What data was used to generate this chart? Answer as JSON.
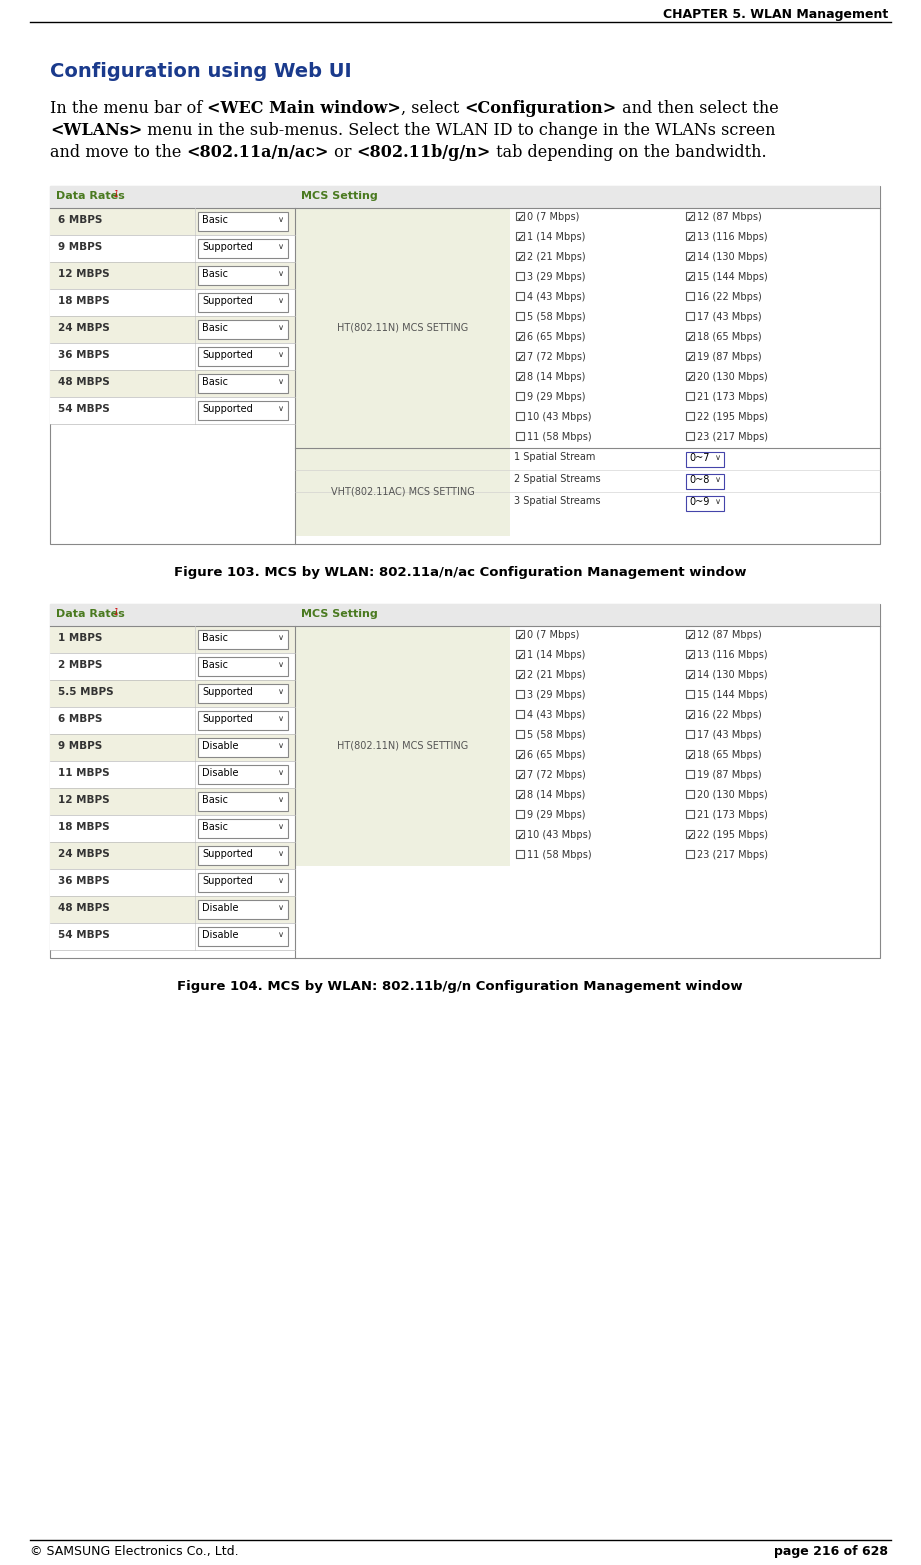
{
  "header_text": "CHAPTER 5. WLAN Management",
  "footer_left": "© SAMSUNG Electronics Co., Ltd.",
  "footer_right": "page 216 of 628",
  "section_title": "Configuration using Web UI",
  "figure1_caption": "Figure 103. MCS by WLAN: 802.11a/n/ac Configuration Management window",
  "figure2_caption": "Figure 104. MCS by WLAN: 802.11b/g/n Configuration Management window",
  "table1": {
    "data_rates_label": "Data Rates",
    "mcs_setting_label": "MCS Setting",
    "ht_label": "HT(802.11N) MCS SETTING",
    "vht_label": "VHT(802.11AC) MCS SETTING",
    "rows": [
      {
        "rate": "6 MBPS",
        "setting": "Basic"
      },
      {
        "rate": "9 MBPS",
        "setting": "Supported"
      },
      {
        "rate": "12 MBPS",
        "setting": "Basic"
      },
      {
        "rate": "18 MBPS",
        "setting": "Supported"
      },
      {
        "rate": "24 MBPS",
        "setting": "Basic"
      },
      {
        "rate": "36 MBPS",
        "setting": "Supported"
      },
      {
        "rate": "48 MBPS",
        "setting": "Basic"
      },
      {
        "rate": "54 MBPS",
        "setting": "Supported"
      }
    ],
    "mcs_left": [
      {
        "checked": true,
        "label": "0 (7 Mbps)"
      },
      {
        "checked": true,
        "label": "1 (14 Mbps)"
      },
      {
        "checked": true,
        "label": "2 (21 Mbps)"
      },
      {
        "checked": false,
        "label": "3 (29 Mbps)"
      },
      {
        "checked": false,
        "label": "4 (43 Mbps)"
      },
      {
        "checked": false,
        "label": "5 (58 Mbps)"
      },
      {
        "checked": true,
        "label": "6 (65 Mbps)"
      },
      {
        "checked": true,
        "label": "7 (72 Mbps)"
      },
      {
        "checked": true,
        "label": "8 (14 Mbps)"
      },
      {
        "checked": false,
        "label": "9 (29 Mbps)"
      },
      {
        "checked": false,
        "label": "10 (43 Mbps)"
      },
      {
        "checked": false,
        "label": "11 (58 Mbps)"
      }
    ],
    "mcs_right": [
      {
        "checked": true,
        "label": "12 (87 Mbps)"
      },
      {
        "checked": true,
        "label": "13 (116 Mbps)"
      },
      {
        "checked": true,
        "label": "14 (130 Mbps)"
      },
      {
        "checked": true,
        "label": "15 (144 Mbps)"
      },
      {
        "checked": false,
        "label": "16 (22 Mbps)"
      },
      {
        "checked": false,
        "label": "17 (43 Mbps)"
      },
      {
        "checked": true,
        "label": "18 (65 Mbps)"
      },
      {
        "checked": true,
        "label": "19 (87 Mbps)"
      },
      {
        "checked": true,
        "label": "20 (130 Mbps)"
      },
      {
        "checked": false,
        "label": "21 (173 Mbps)"
      },
      {
        "checked": false,
        "label": "22 (195 Mbps)"
      },
      {
        "checked": false,
        "label": "23 (217 Mbps)"
      }
    ],
    "vht_rows": [
      {
        "label": "1 Spatial Stream",
        "value": "0~7"
      },
      {
        "label": "2 Spatial Streams",
        "value": "0~8"
      },
      {
        "label": "3 Spatial Streams",
        "value": "0~9"
      }
    ]
  },
  "table2": {
    "data_rates_label": "Data Rates",
    "mcs_setting_label": "MCS Setting",
    "ht_label": "HT(802.11N) MCS SETTING",
    "rows": [
      {
        "rate": "1 MBPS",
        "setting": "Basic"
      },
      {
        "rate": "2 MBPS",
        "setting": "Basic"
      },
      {
        "rate": "5.5 MBPS",
        "setting": "Supported"
      },
      {
        "rate": "6 MBPS",
        "setting": "Supported"
      },
      {
        "rate": "9 MBPS",
        "setting": "Disable"
      },
      {
        "rate": "11 MBPS",
        "setting": "Disable"
      },
      {
        "rate": "12 MBPS",
        "setting": "Basic"
      },
      {
        "rate": "18 MBPS",
        "setting": "Basic"
      },
      {
        "rate": "24 MBPS",
        "setting": "Supported"
      },
      {
        "rate": "36 MBPS",
        "setting": "Supported"
      },
      {
        "rate": "48 MBPS",
        "setting": "Disable"
      },
      {
        "rate": "54 MBPS",
        "setting": "Disable"
      }
    ],
    "mcs_left": [
      {
        "checked": true,
        "label": "0 (7 Mbps)"
      },
      {
        "checked": true,
        "label": "1 (14 Mbps)"
      },
      {
        "checked": true,
        "label": "2 (21 Mbps)"
      },
      {
        "checked": false,
        "label": "3 (29 Mbps)"
      },
      {
        "checked": false,
        "label": "4 (43 Mbps)"
      },
      {
        "checked": false,
        "label": "5 (58 Mbps)"
      },
      {
        "checked": true,
        "label": "6 (65 Mbps)"
      },
      {
        "checked": true,
        "label": "7 (72 Mbps)"
      },
      {
        "checked": true,
        "label": "8 (14 Mbps)"
      },
      {
        "checked": false,
        "label": "9 (29 Mbps)"
      },
      {
        "checked": true,
        "label": "10 (43 Mbps)"
      },
      {
        "checked": false,
        "label": "11 (58 Mbps)"
      }
    ],
    "mcs_right": [
      {
        "checked": true,
        "label": "12 (87 Mbps)"
      },
      {
        "checked": true,
        "label": "13 (116 Mbps)"
      },
      {
        "checked": true,
        "label": "14 (130 Mbps)"
      },
      {
        "checked": false,
        "label": "15 (144 Mbps)"
      },
      {
        "checked": true,
        "label": "16 (22 Mbps)"
      },
      {
        "checked": false,
        "label": "17 (43 Mbps)"
      },
      {
        "checked": true,
        "label": "18 (65 Mbps)"
      },
      {
        "checked": false,
        "label": "19 (87 Mbps)"
      },
      {
        "checked": false,
        "label": "20 (130 Mbps)"
      },
      {
        "checked": false,
        "label": "21 (173 Mbps)"
      },
      {
        "checked": true,
        "label": "22 (195 Mbps)"
      },
      {
        "checked": false,
        "label": "23 (217 Mbps)"
      }
    ]
  },
  "bg_color": "#ffffff",
  "section_title_color": "#1a3a8c",
  "label_color": "#4a7a20",
  "body_font_size": 11.5,
  "caption_font_size": 9.5,
  "header_font_size": 9,
  "footer_font_size": 9
}
